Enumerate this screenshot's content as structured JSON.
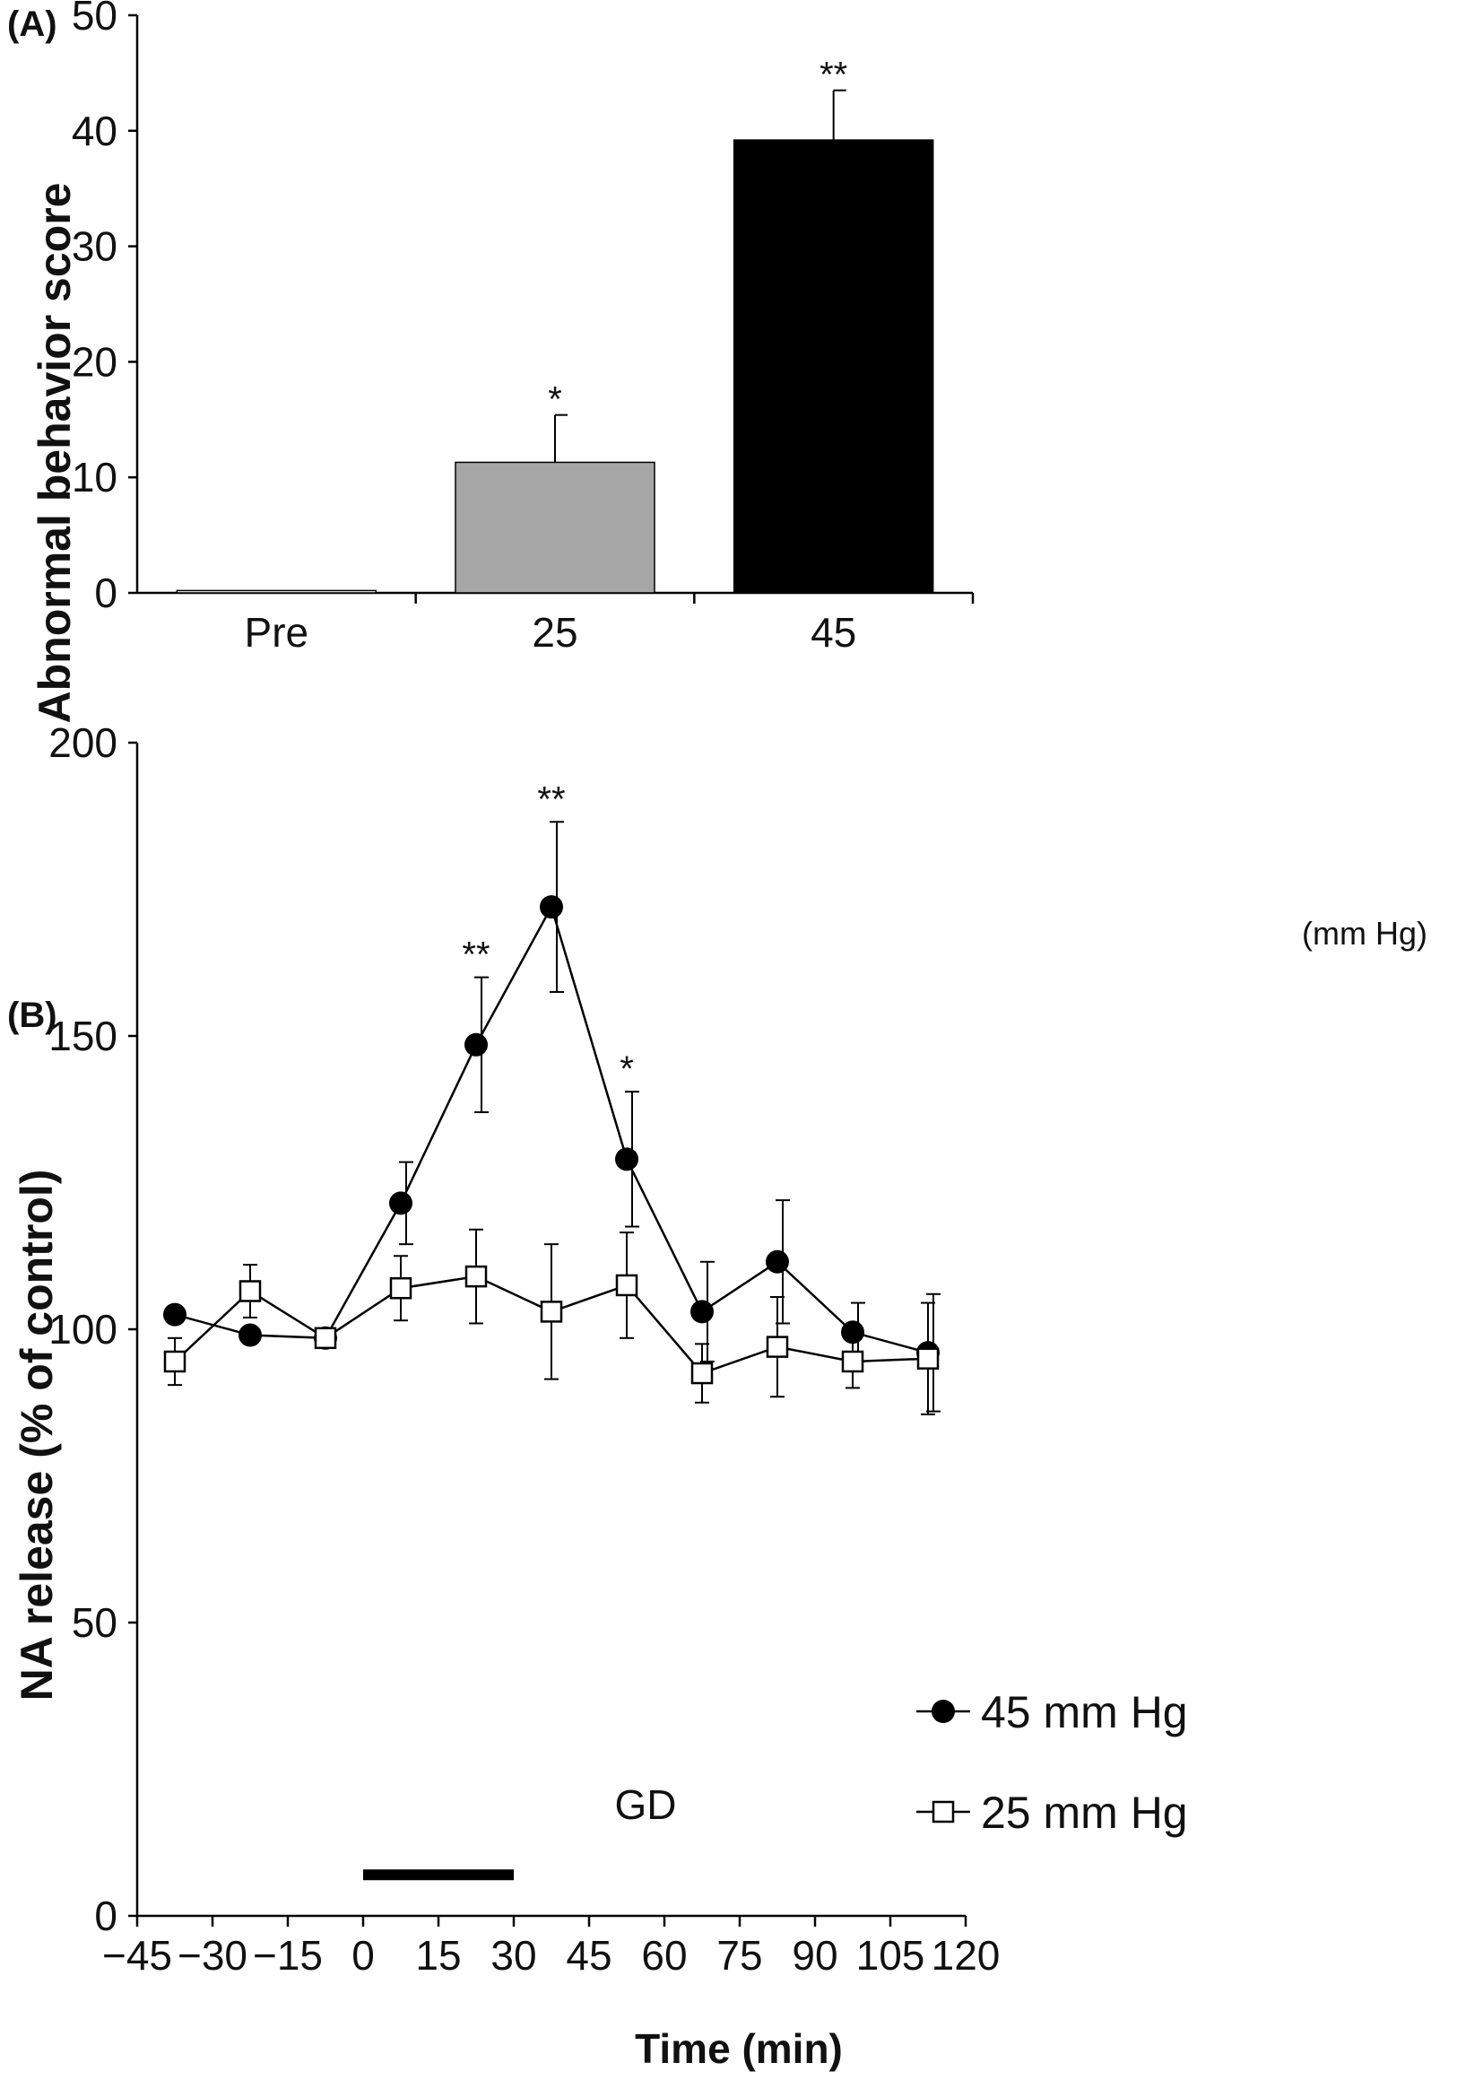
{
  "chart_data": [
    {
      "type": "bar",
      "panel_label": "(A)",
      "ylabel": "Abnormal behavior score",
      "ylim": [
        0,
        50
      ],
      "yticks": [
        0,
        10,
        20,
        30,
        40,
        50
      ],
      "categories": [
        "Pre",
        "25",
        "45"
      ],
      "unit_label": "(mm Hg)",
      "values": [
        0.2,
        11.3,
        39.2
      ],
      "errors": [
        0,
        4.1,
        4.3
      ],
      "significance": [
        "",
        "*",
        "**"
      ],
      "colors": [
        "#ffffff",
        "#a6a6a6",
        "#000000"
      ]
    },
    {
      "type": "line",
      "panel_label": "(B)",
      "ylabel": "NA release (% of control)",
      "xlabel": "Time (min)",
      "xlim": [
        -45,
        120
      ],
      "ylim": [
        0,
        200
      ],
      "xticks": [
        -45,
        -30,
        -15,
        0,
        15,
        30,
        45,
        60,
        75,
        90,
        105,
        120
      ],
      "xtick_labels": [
        "−45",
        "−30",
        "−15",
        "0",
        "15",
        "30",
        "45",
        "60",
        "75",
        "90",
        "105",
        "120"
      ],
      "yticks": [
        0,
        50,
        100,
        150,
        200
      ],
      "x": [
        -37.5,
        -22.5,
        -7.5,
        7.5,
        22.5,
        37.5,
        52.5,
        67.5,
        82.5,
        97.5,
        112.5
      ],
      "series": [
        {
          "name": "45 mm Hg",
          "marker": "filled-circle",
          "color": "#000000",
          "values": [
            102.5,
            99,
            98.5,
            121.5,
            148.5,
            172,
            129,
            103,
            111.5,
            99.5,
            96
          ],
          "errors": [
            0,
            0,
            0,
            7,
            11.5,
            14.5,
            11.5,
            8.5,
            10.5,
            5,
            10
          ],
          "significance": [
            "",
            "",
            "",
            "",
            "**",
            "**",
            "*",
            "",
            "",
            "",
            ""
          ]
        },
        {
          "name": "25 mm Hg",
          "marker": "open-square",
          "color": "#000000",
          "values": [
            94.5,
            106.5,
            98.5,
            107,
            109,
            103,
            107.5,
            92.5,
            97,
            94.5,
            95
          ],
          "errors": [
            4,
            4.5,
            0,
            5.5,
            8,
            11.5,
            9,
            5,
            8.5,
            4.5,
            9.5
          ],
          "significance": [
            "",
            "",
            "",
            "",
            "",
            "",
            "",
            "",
            "",
            "",
            ""
          ]
        }
      ],
      "annotation": {
        "label": "GD",
        "x_start": 0,
        "x_end": 30,
        "y": 7
      },
      "legend_position": "bottom-right"
    }
  ]
}
